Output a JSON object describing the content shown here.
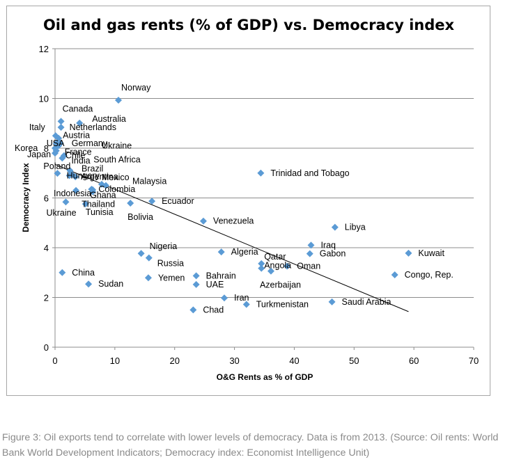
{
  "chart_data": {
    "type": "scatter",
    "title": "Oil and gas rents (% of GDP) vs. Democracy index",
    "xlabel": "O&G Rents as % of GDP",
    "ylabel": "Democracy Index",
    "xlim": [
      0,
      70
    ],
    "ylim": [
      0,
      12
    ],
    "xticks": [
      0,
      10,
      20,
      30,
      40,
      50,
      60,
      70
    ],
    "yticks": [
      0,
      2,
      4,
      6,
      8,
      10,
      12
    ],
    "grid": "horizontal",
    "marker_color": "#5b9bd5",
    "trendline": {
      "type": "linear",
      "x": [
        0,
        59.1
      ],
      "y": [
        7.35,
        1.43
      ]
    },
    "points": [
      {
        "label": "Norway",
        "x": 10.6,
        "y": 9.93
      },
      {
        "label": "Canada",
        "x": 1.0,
        "y": 9.08
      },
      {
        "label": "Australia",
        "x": 4.1,
        "y": 9.01
      },
      {
        "label": "Netherlands",
        "x": 1.0,
        "y": 8.84
      },
      {
        "label": "Italy",
        "x": 0.1,
        "y": 8.5
      },
      {
        "label": "Austria",
        "x": 0.6,
        "y": 8.4
      },
      {
        "label": "USA",
        "x": 0.2,
        "y": 8.2
      },
      {
        "label": "Germany",
        "x": 0.9,
        "y": 8.2
      },
      {
        "label": "Ukraine",
        "x": 0.6,
        "y": 8.1
      },
      {
        "label": "Korea",
        "x": 0.0,
        "y": 8.0
      },
      {
        "label": "France",
        "x": 0.2,
        "y": 7.9
      },
      {
        "label": "Japan",
        "x": 0.0,
        "y": 7.8
      },
      {
        "label": "Chile",
        "x": 1.5,
        "y": 7.7
      },
      {
        "label": "South Africa",
        "x": 1.2,
        "y": 7.6
      },
      {
        "label": "India",
        "x": 2.5,
        "y": 7.1
      },
      {
        "label": "Poland",
        "x": 0.4,
        "y": 6.99
      },
      {
        "label": "Brazil",
        "x": 2.8,
        "y": 6.95
      },
      {
        "label": "Hungary",
        "x": 2.4,
        "y": 6.9
      },
      {
        "label": "Argentina",
        "x": 3.4,
        "y": 6.85
      },
      {
        "label": "Mexico",
        "x": 7.8,
        "y": 6.55
      },
      {
        "label": "Malaysia",
        "x": 8.5,
        "y": 6.5
      },
      {
        "label": "Colombia",
        "x": 6.1,
        "y": 6.35
      },
      {
        "label": "Indonesia",
        "x": 3.5,
        "y": 6.3
      },
      {
        "label": "Ghana",
        "x": 6.3,
        "y": 6.33
      },
      {
        "label": "Thailand",
        "x": 6.3,
        "y": 6.25
      },
      {
        "label": "Ecuador",
        "x": 16.2,
        "y": 5.87
      },
      {
        "label": "Ukraine",
        "x": 1.8,
        "y": 5.84
      },
      {
        "label": "Bolivia",
        "x": 12.6,
        "y": 5.79
      },
      {
        "label": "Tunisia",
        "x": 5.1,
        "y": 5.76
      },
      {
        "label": "Venezuela",
        "x": 24.8,
        "y": 5.07
      },
      {
        "label": "Libya",
        "x": 46.8,
        "y": 4.82
      },
      {
        "label": "Iraq",
        "x": 42.8,
        "y": 4.1
      },
      {
        "label": "Gabon",
        "x": 42.6,
        "y": 3.76
      },
      {
        "label": "Kuwait",
        "x": 59.1,
        "y": 3.78
      },
      {
        "label": "Nigeria",
        "x": 14.4,
        "y": 3.77
      },
      {
        "label": "Russia",
        "x": 15.7,
        "y": 3.59
      },
      {
        "label": "Algeria",
        "x": 27.8,
        "y": 3.83
      },
      {
        "label": "Qatar",
        "x": 34.5,
        "y": 3.36
      },
      {
        "label": "Angola",
        "x": 34.5,
        "y": 3.17
      },
      {
        "label": "Oman",
        "x": 38.8,
        "y": 3.26
      },
      {
        "label": "Azerbaijan",
        "x": 36.1,
        "y": 3.06
      },
      {
        "label": "Congo, Rep.",
        "x": 56.8,
        "y": 2.91
      },
      {
        "label": "China",
        "x": 1.2,
        "y": 3.0
      },
      {
        "label": "Sudan",
        "x": 5.6,
        "y": 2.54
      },
      {
        "label": "Yemen",
        "x": 15.6,
        "y": 2.79
      },
      {
        "label": "Bahrain",
        "x": 23.6,
        "y": 2.87
      },
      {
        "label": "UAE",
        "x": 23.6,
        "y": 2.52
      },
      {
        "label": "Iran",
        "x": 28.3,
        "y": 1.98
      },
      {
        "label": "Turkmenistan",
        "x": 32.0,
        "y": 1.72
      },
      {
        "label": "Saudi Arabia",
        "x": 46.3,
        "y": 1.82
      },
      {
        "label": "Chad",
        "x": 23.1,
        "y": 1.5
      },
      {
        "label": "Trinidad and Tobago",
        "x": 34.4,
        "y": 7.0
      }
    ]
  },
  "caption": {
    "line1": "Figure 3: Oil exports tend to correlate with lower levels of democracy. Data is from 2013. (Source: Oil rents: World",
    "line2": "Bank World Development Indicators; Democracy index: Economist Intelligence Unit)"
  }
}
